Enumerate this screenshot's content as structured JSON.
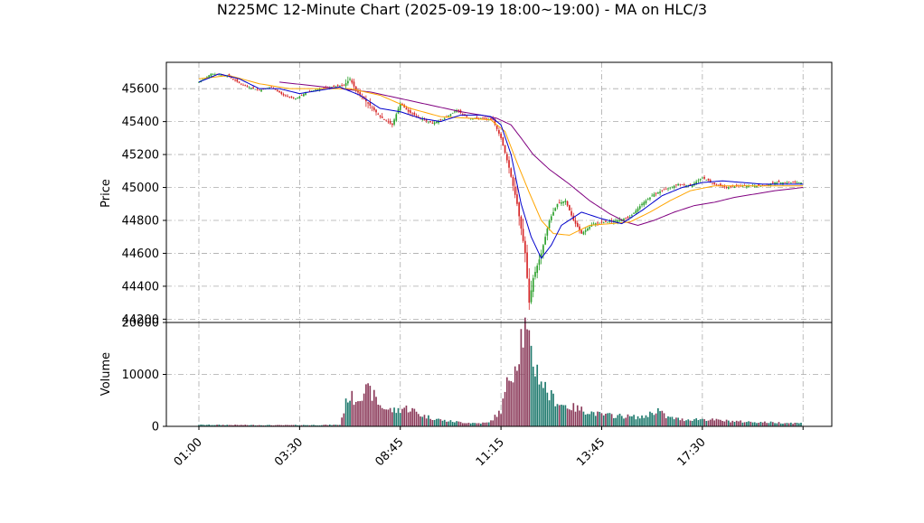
{
  "chart_data": {
    "type": "candlestick",
    "title": "N225MC 12-Minute Chart (2025-09-19 18:00~19:00) - MA on HLC/3",
    "price_axis": {
      "label": "Price",
      "ylim": [
        44180,
        45760
      ],
      "ticks": [
        44200,
        44400,
        44600,
        44800,
        45000,
        45200,
        45400,
        45600
      ]
    },
    "volume_axis": {
      "label": "Volume",
      "ylim": [
        0,
        20000
      ],
      "ticks": [
        0,
        10000,
        20000
      ]
    },
    "x_axis": {
      "tick_labels": [
        "01:00",
        "03:30",
        "08:45",
        "11:15",
        "13:45",
        "17:30"
      ]
    },
    "grid": true,
    "colors": {
      "up": "#2ca02c",
      "down": "#d62728",
      "volume_up": "#1f7a6e",
      "volume_down": "#8b3a5a",
      "ma_short": "#0000cc",
      "ma_mid": "#ffa500",
      "ma_long": "#800080",
      "grid": "#aaaaaa"
    },
    "price_path": [
      [
        0,
        45640
      ],
      [
        6,
        45690
      ],
      [
        14,
        45680
      ],
      [
        22,
        45620
      ],
      [
        30,
        45590
      ],
      [
        36,
        45610
      ],
      [
        42,
        45560
      ],
      [
        48,
        45540
      ],
      [
        54,
        45580
      ],
      [
        60,
        45600
      ],
      [
        66,
        45610
      ],
      [
        72,
        45620
      ],
      [
        75,
        45660
      ],
      [
        78,
        45590
      ],
      [
        84,
        45510
      ],
      [
        90,
        45430
      ],
      [
        96,
        45380
      ],
      [
        100,
        45510
      ],
      [
        104,
        45460
      ],
      [
        110,
        45420
      ],
      [
        116,
        45390
      ],
      [
        122,
        45420
      ],
      [
        128,
        45470
      ],
      [
        134,
        45420
      ],
      [
        140,
        45420
      ],
      [
        146,
        45410
      ],
      [
        150,
        45300
      ],
      [
        154,
        45120
      ],
      [
        158,
        44900
      ],
      [
        162,
        44600
      ],
      [
        164,
        44300
      ],
      [
        166,
        44450
      ],
      [
        170,
        44600
      ],
      [
        174,
        44800
      ],
      [
        178,
        44900
      ],
      [
        182,
        44920
      ],
      [
        186,
        44800
      ],
      [
        190,
        44720
      ],
      [
        196,
        44780
      ],
      [
        202,
        44790
      ],
      [
        208,
        44800
      ],
      [
        214,
        44820
      ],
      [
        220,
        44900
      ],
      [
        226,
        44960
      ],
      [
        232,
        44990
      ],
      [
        238,
        45020
      ],
      [
        244,
        45010
      ],
      [
        250,
        45060
      ],
      [
        256,
        45020
      ],
      [
        262,
        45000
      ],
      [
        268,
        45010
      ],
      [
        274,
        45010
      ],
      [
        280,
        45010
      ],
      [
        286,
        45030
      ],
      [
        292,
        45030
      ],
      [
        300,
        45030
      ]
    ],
    "volume_profile": [
      [
        0,
        300
      ],
      [
        20,
        260
      ],
      [
        40,
        220
      ],
      [
        60,
        260
      ],
      [
        70,
        300
      ],
      [
        74,
        5800
      ],
      [
        78,
        5200
      ],
      [
        82,
        7000
      ],
      [
        86,
        6300
      ],
      [
        90,
        4000
      ],
      [
        94,
        3200
      ],
      [
        98,
        3000
      ],
      [
        102,
        3600
      ],
      [
        106,
        3200
      ],
      [
        110,
        2200
      ],
      [
        116,
        1600
      ],
      [
        122,
        1100
      ],
      [
        130,
        800
      ],
      [
        138,
        600
      ],
      [
        144,
        700
      ],
      [
        150,
        3000
      ],
      [
        154,
        9500
      ],
      [
        158,
        13000
      ],
      [
        160,
        17500
      ],
      [
        162,
        18500
      ],
      [
        164,
        15000
      ],
      [
        166,
        12500
      ],
      [
        170,
        9000
      ],
      [
        174,
        6000
      ],
      [
        180,
        4200
      ],
      [
        190,
        3200
      ],
      [
        200,
        2200
      ],
      [
        210,
        2000
      ],
      [
        220,
        1700
      ],
      [
        228,
        3200
      ],
      [
        232,
        1800
      ],
      [
        240,
        1300
      ],
      [
        250,
        1400
      ],
      [
        260,
        1100
      ],
      [
        270,
        900
      ],
      [
        280,
        800
      ],
      [
        290,
        700
      ],
      [
        300,
        600
      ]
    ],
    "ma_short": [
      [
        0,
        45640
      ],
      [
        10,
        45690
      ],
      [
        20,
        45660
      ],
      [
        30,
        45600
      ],
      [
        40,
        45600
      ],
      [
        50,
        45570
      ],
      [
        60,
        45590
      ],
      [
        70,
        45610
      ],
      [
        80,
        45560
      ],
      [
        90,
        45480
      ],
      [
        100,
        45460
      ],
      [
        110,
        45420
      ],
      [
        120,
        45400
      ],
      [
        130,
        45440
      ],
      [
        140,
        45440
      ],
      [
        145,
        45430
      ],
      [
        150,
        45380
      ],
      [
        155,
        45200
      ],
      [
        160,
        44900
      ],
      [
        165,
        44700
      ],
      [
        170,
        44570
      ],
      [
        175,
        44650
      ],
      [
        180,
        44770
      ],
      [
        190,
        44850
      ],
      [
        200,
        44810
      ],
      [
        210,
        44780
      ],
      [
        220,
        44860
      ],
      [
        230,
        44950
      ],
      [
        240,
        45000
      ],
      [
        250,
        45030
      ],
      [
        260,
        45040
      ],
      [
        270,
        45030
      ],
      [
        280,
        45020
      ],
      [
        290,
        45020
      ],
      [
        300,
        45020
      ]
    ],
    "ma_mid": [
      [
        0,
        45660
      ],
      [
        15,
        45680
      ],
      [
        30,
        45630
      ],
      [
        45,
        45600
      ],
      [
        60,
        45600
      ],
      [
        75,
        45600
      ],
      [
        90,
        45560
      ],
      [
        105,
        45480
      ],
      [
        120,
        45430
      ],
      [
        135,
        45420
      ],
      [
        145,
        45410
      ],
      [
        152,
        45340
      ],
      [
        158,
        45150
      ],
      [
        164,
        44970
      ],
      [
        170,
        44800
      ],
      [
        176,
        44720
      ],
      [
        184,
        44710
      ],
      [
        194,
        44770
      ],
      [
        204,
        44780
      ],
      [
        214,
        44790
      ],
      [
        224,
        44850
      ],
      [
        234,
        44920
      ],
      [
        244,
        44980
      ],
      [
        256,
        45010
      ],
      [
        270,
        45010
      ],
      [
        285,
        45010
      ],
      [
        300,
        45010
      ]
    ],
    "ma_long": [
      [
        40,
        45640
      ],
      [
        55,
        45620
      ],
      [
        70,
        45600
      ],
      [
        85,
        45580
      ],
      [
        100,
        45540
      ],
      [
        115,
        45500
      ],
      [
        130,
        45460
      ],
      [
        140,
        45440
      ],
      [
        148,
        45420
      ],
      [
        155,
        45380
      ],
      [
        160,
        45300
      ],
      [
        166,
        45200
      ],
      [
        174,
        45110
      ],
      [
        184,
        45020
      ],
      [
        194,
        44920
      ],
      [
        204,
        44840
      ],
      [
        212,
        44790
      ],
      [
        218,
        44770
      ],
      [
        226,
        44800
      ],
      [
        236,
        44850
      ],
      [
        246,
        44890
      ],
      [
        256,
        44910
      ],
      [
        266,
        44940
      ],
      [
        276,
        44960
      ],
      [
        286,
        44980
      ],
      [
        300,
        45000
      ]
    ],
    "total_bars": 300
  }
}
